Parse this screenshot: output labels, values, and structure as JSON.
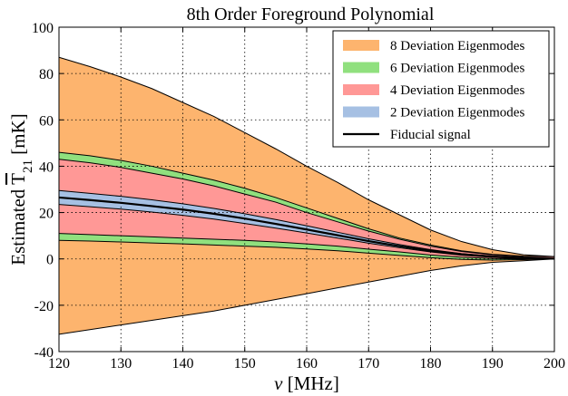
{
  "chart_data": {
    "type": "area",
    "title": "8th Order Foreground Polynomial",
    "xlabel": "ν [MHz]",
    "ylabel_prefix": "Estimated ",
    "ylabel_symbol": "T",
    "ylabel_sub": "21",
    "ylabel_suffix": " [mK]",
    "xlim": [
      120,
      200
    ],
    "ylim": [
      -40,
      100
    ],
    "xticks": [
      "120",
      "130",
      "140",
      "150",
      "160",
      "170",
      "180",
      "190",
      "200"
    ],
    "yticks": [
      "-40",
      "-20",
      "0",
      "20",
      "40",
      "60",
      "80",
      "100"
    ],
    "grid": true,
    "legend_position": "top-right",
    "x": [
      120,
      125,
      130,
      135,
      140,
      145,
      150,
      155,
      160,
      165,
      170,
      175,
      180,
      185,
      190,
      195,
      200
    ],
    "series": [
      {
        "name": "8 Deviation Eigenmodes",
        "color": "#FDB46E",
        "upper": [
          87,
          83,
          78.5,
          73.5,
          67.5,
          61.5,
          54.5,
          47.5,
          40,
          33,
          25.5,
          19,
          12.5,
          7.5,
          4,
          1.8,
          1
        ],
        "lower": [
          -32.5,
          -30.5,
          -28.5,
          -26.5,
          -24.5,
          -22.5,
          -20,
          -17.5,
          -15,
          -12.5,
          -10,
          -7.5,
          -5,
          -3,
          -1.5,
          -0.8,
          0
        ]
      },
      {
        "name": "6 Deviation Eigenmodes",
        "color": "#90E07E",
        "upper": [
          46,
          44.5,
          42.5,
          40,
          37,
          34,
          30.5,
          26.5,
          22,
          17.5,
          13,
          9,
          6,
          3.5,
          2,
          1.2,
          1
        ],
        "lower": [
          8,
          7.7,
          7.3,
          6.9,
          6.5,
          6,
          5.5,
          5,
          4.3,
          3.5,
          2.5,
          1.5,
          0.5,
          -0.2,
          -0.5,
          -0.3,
          0
        ]
      },
      {
        "name": "4 Deviation Eigenmodes",
        "color": "#FF9896",
        "upper": [
          43,
          41.5,
          39.5,
          37,
          34.5,
          31.5,
          28,
          24.5,
          20,
          16,
          12,
          8.5,
          5.5,
          3.2,
          1.8,
          1,
          1
        ],
        "lower": [
          11,
          10.5,
          10,
          9.5,
          9,
          8.5,
          8,
          7.3,
          6.5,
          5.5,
          4.2,
          3,
          1.7,
          0.7,
          0.2,
          0,
          0
        ]
      },
      {
        "name": "2 Deviation Eigenmodes",
        "color": "#A6C0E3",
        "upper": [
          29.5,
          28.3,
          27,
          25.5,
          23.8,
          21.8,
          19.5,
          17,
          14.3,
          11.5,
          8.7,
          6.2,
          4,
          2.3,
          1.2,
          0.6,
          0.3
        ],
        "lower": [
          23.5,
          22.5,
          21.5,
          20.2,
          18.8,
          17.2,
          15.3,
          13.3,
          11.2,
          9,
          6.8,
          4.8,
          3,
          1.6,
          0.7,
          0.2,
          0
        ]
      }
    ],
    "fiducial": {
      "name": "Fiducial signal",
      "color": "#000000",
      "y": [
        26.5,
        25.4,
        24.2,
        22.8,
        21.3,
        19.5,
        17.4,
        15.1,
        12.7,
        10.2,
        7.7,
        5.5,
        3.5,
        2,
        1,
        0.4,
        0.1
      ]
    }
  }
}
